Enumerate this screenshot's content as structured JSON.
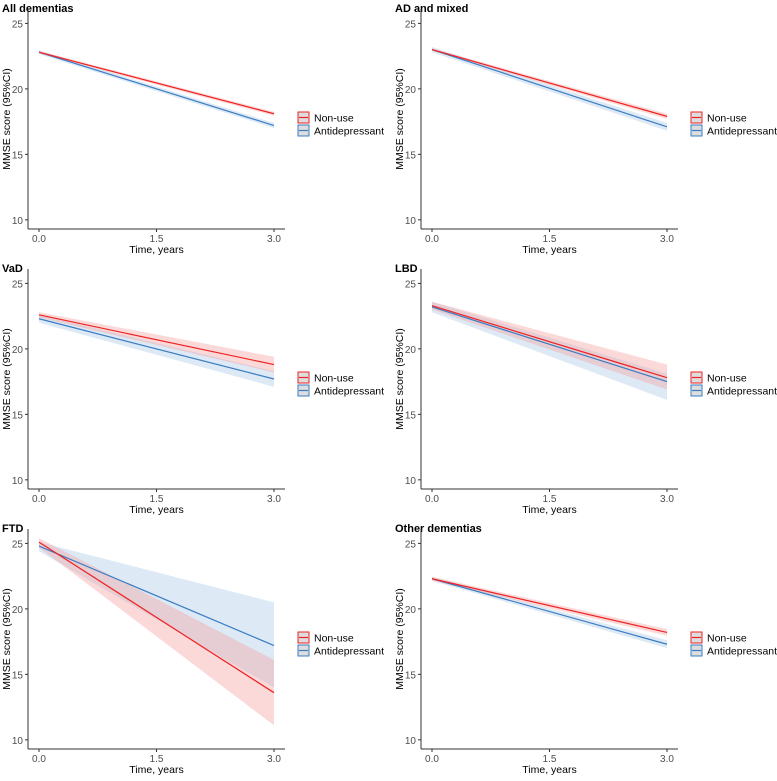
{
  "chart_data": [
    {
      "type": "line",
      "title": "All dementias",
      "xlabel": "Time, years",
      "ylabel": "MMSE score (95%CI)",
      "xlim": [
        0,
        3
      ],
      "ylim": [
        9.3,
        26.1
      ],
      "xticks": [
        "0.0",
        "1.5",
        "3.0"
      ],
      "yticks": [
        "10",
        "15",
        "20",
        "25"
      ],
      "series": [
        {
          "name": "Non-use",
          "x": [
            0,
            3
          ],
          "y": [
            22.8,
            18.1
          ],
          "lower": [
            22.7,
            17.95
          ],
          "upper": [
            22.9,
            18.25
          ]
        },
        {
          "name": "Antidepressant",
          "x": [
            0,
            3
          ],
          "y": [
            22.8,
            17.2
          ],
          "lower": [
            22.65,
            17.0
          ],
          "upper": [
            22.95,
            17.4
          ]
        }
      ]
    },
    {
      "type": "line",
      "title": "AD and mixed",
      "xlabel": "Time, years",
      "ylabel": "MMSE score (95%CI)",
      "xlim": [
        0,
        3
      ],
      "ylim": [
        9.3,
        26.1
      ],
      "xticks": [
        "0.0",
        "1.5",
        "3.0"
      ],
      "yticks": [
        "10",
        "15",
        "20",
        "25"
      ],
      "series": [
        {
          "name": "Non-use",
          "x": [
            0,
            3
          ],
          "y": [
            23.0,
            17.9
          ],
          "lower": [
            22.9,
            17.7
          ],
          "upper": [
            23.1,
            18.1
          ]
        },
        {
          "name": "Antidepressant",
          "x": [
            0,
            3
          ],
          "y": [
            23.0,
            17.1
          ],
          "lower": [
            22.8,
            16.8
          ],
          "upper": [
            23.2,
            17.4
          ]
        }
      ]
    },
    {
      "type": "line",
      "title": "VaD",
      "xlabel": "Time, years",
      "ylabel": "MMSE score (95%CI)",
      "xlim": [
        0,
        3
      ],
      "ylim": [
        9.3,
        26.1
      ],
      "xticks": [
        "0.0",
        "1.5",
        "3.0"
      ],
      "yticks": [
        "10",
        "15",
        "20",
        "25"
      ],
      "series": [
        {
          "name": "Non-use",
          "x": [
            0,
            3
          ],
          "y": [
            22.6,
            18.8
          ],
          "lower": [
            22.4,
            18.2
          ],
          "upper": [
            22.8,
            19.4
          ]
        },
        {
          "name": "Antidepressant",
          "x": [
            0,
            3
          ],
          "y": [
            22.3,
            17.7
          ],
          "lower": [
            22.0,
            17.1
          ],
          "upper": [
            22.6,
            18.3
          ]
        }
      ]
    },
    {
      "type": "line",
      "title": "LBD",
      "xlabel": "Time, years",
      "ylabel": "MMSE score (95%CI)",
      "xlim": [
        0,
        3
      ],
      "ylim": [
        9.3,
        26.1
      ],
      "xticks": [
        "0.0",
        "1.5",
        "3.0"
      ],
      "yticks": [
        "10",
        "15",
        "20",
        "25"
      ],
      "series": [
        {
          "name": "Non-use",
          "x": [
            0,
            3
          ],
          "y": [
            23.3,
            17.8
          ],
          "lower": [
            23.0,
            16.9
          ],
          "upper": [
            23.6,
            18.8
          ]
        },
        {
          "name": "Antidepressant",
          "x": [
            0,
            3
          ],
          "y": [
            23.2,
            17.5
          ],
          "lower": [
            22.8,
            16.1
          ],
          "upper": [
            23.6,
            18.1
          ]
        }
      ]
    },
    {
      "type": "line",
      "title": "FTD",
      "xlabel": "Time, years",
      "ylabel": "MMSE score (95%CI)",
      "xlim": [
        0,
        3
      ],
      "ylim": [
        9.3,
        26.1
      ],
      "xticks": [
        "0.0",
        "1.5",
        "3.0"
      ],
      "yticks": [
        "10",
        "15",
        "20",
        "25"
      ],
      "series": [
        {
          "name": "Non-use",
          "x": [
            0,
            3
          ],
          "y": [
            25.1,
            13.6
          ],
          "lower": [
            24.7,
            11.1
          ],
          "upper": [
            25.4,
            16.1
          ]
        },
        {
          "name": "Antidepressant",
          "x": [
            0,
            3
          ],
          "y": [
            24.8,
            17.2
          ],
          "lower": [
            24.4,
            14.0
          ],
          "upper": [
            25.1,
            20.5
          ]
        }
      ]
    },
    {
      "type": "line",
      "title": "Other dementias",
      "xlabel": "Time, years",
      "ylabel": "MMSE score (95%CI)",
      "xlim": [
        0,
        3
      ],
      "ylim": [
        9.3,
        26.1
      ],
      "xticks": [
        "0.0",
        "1.5",
        "3.0"
      ],
      "yticks": [
        "10",
        "15",
        "20",
        "25"
      ],
      "series": [
        {
          "name": "Non-use",
          "x": [
            0,
            3
          ],
          "y": [
            22.3,
            18.2
          ],
          "lower": [
            22.15,
            17.95
          ],
          "upper": [
            22.45,
            18.45
          ]
        },
        {
          "name": "Antidepressant",
          "x": [
            0,
            3
          ],
          "y": [
            22.3,
            17.3
          ],
          "lower": [
            22.15,
            17.0
          ],
          "upper": [
            22.45,
            17.6
          ]
        }
      ]
    }
  ],
  "colors": {
    "Non-use": "#ee2222",
    "Antidepressant": "#3a7dc4",
    "Non-use-fill": "#f4a0a0",
    "Antidepressant-fill": "#a9c8e6"
  }
}
